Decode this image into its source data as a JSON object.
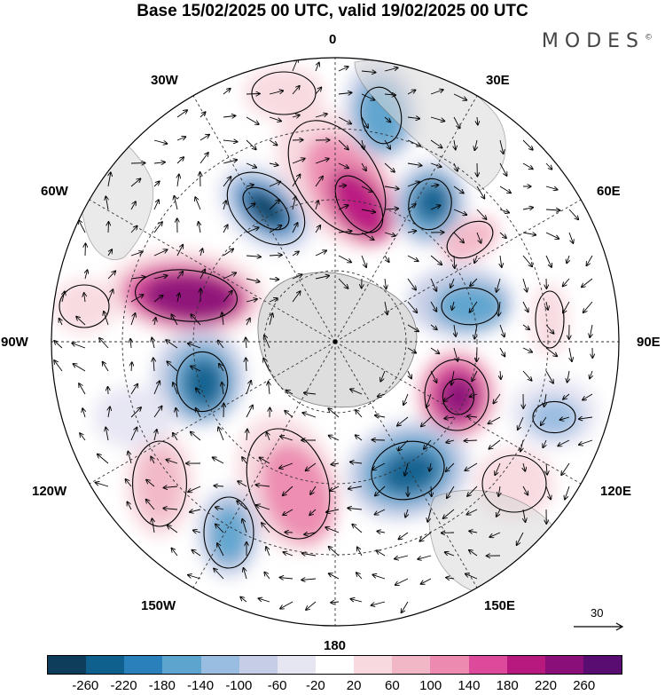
{
  "title": "Base 15/02/2025 00 UTC, valid 19/02/2025 00 UTC",
  "brand": "MODES",
  "brand_mark": "©",
  "longitude_labels": {
    "top": "0",
    "top_right": "30E",
    "right_upper": "60E",
    "right": "90E",
    "right_lower": "120E",
    "bottom_right": "150E",
    "bottom": "180",
    "bottom_left": "150W",
    "left_lower": "120W",
    "left": "90W",
    "left_upper": "60W",
    "top_left": "30W"
  },
  "reference_vector": "30",
  "colorbar": {
    "colors": [
      "#0d3d5a",
      "#10608e",
      "#2a80ba",
      "#5da4cf",
      "#98bde0",
      "#c6cde6",
      "#e6e5f2",
      "#ffffff",
      "#f8d9df",
      "#f2b7c7",
      "#ed8ab0",
      "#dd4a9b",
      "#b8197f",
      "#8a0f78",
      "#5a0d70"
    ],
    "tick_labels": [
      "-260",
      "-220",
      "-180",
      "-140",
      "-100",
      "-60",
      "-20",
      "20",
      "60",
      "100",
      "140",
      "180",
      "220",
      "260"
    ]
  },
  "colors": {
    "graticule": "#333333",
    "land": "#d9d9d9",
    "coast": "#666666"
  }
}
